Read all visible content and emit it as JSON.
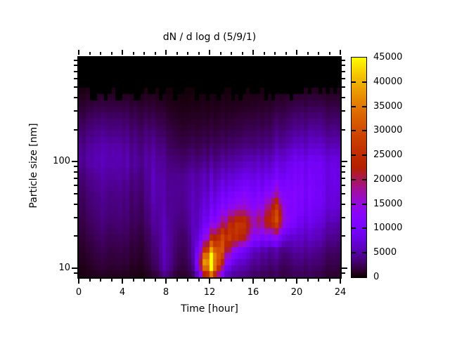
{
  "chart_data": {
    "type": "heatmap",
    "title": "dN / d log d (5/9/1)",
    "xlabel": "Time [hour]",
    "ylabel": "Particle size [nm]",
    "x_range": [
      0,
      24
    ],
    "x_major_ticks": [
      0,
      4,
      8,
      12,
      16,
      20,
      24
    ],
    "x_minor_ticks": [
      1,
      2,
      3,
      5,
      6,
      7,
      9,
      10,
      11,
      13,
      14,
      15,
      17,
      18,
      19,
      21,
      22,
      23
    ],
    "y_scale": "log",
    "y_range_nm": [
      8.2,
      950
    ],
    "y_major_ticks": [
      10,
      100
    ],
    "y_minor_ticks": [
      9,
      20,
      30,
      40,
      50,
      60,
      70,
      80,
      90,
      200,
      300,
      400,
      500,
      600,
      700,
      800,
      900
    ],
    "colorbar": {
      "min": 0,
      "max": 45000,
      "label_values": [
        0,
        5000,
        10000,
        15000,
        20000,
        25000,
        30000,
        35000,
        40000,
        45000
      ],
      "tick_values": [
        5000,
        10000,
        15000,
        20000,
        25000,
        30000,
        35000,
        40000
      ],
      "palette": "gnuplot rgbformulae 7,5,15 (black-violet-magenta-red-orange-yellow)",
      "color_black": "#000000",
      "color_violet": "#7b1fe8",
      "color_orange": "#d06000",
      "color_yellow": "#ffff00"
    },
    "no_data_cutoff_nm": [
      380,
      500
    ],
    "striping": {
      "column_minutes": 20,
      "amplitude": 0.13
    },
    "grid": {
      "rows_order": "sizes ascending, one row per size, one value per hour",
      "hours": [
        0,
        1,
        2,
        3,
        4,
        5,
        6,
        7,
        8,
        9,
        10,
        10.5,
        11,
        11.5,
        12,
        12.5,
        13,
        13.5,
        14,
        14.5,
        15,
        16,
        17,
        17.5,
        18,
        18.5,
        19,
        20,
        21,
        22,
        23,
        24
      ],
      "sizes_nm": [
        8.5,
        10,
        12,
        15,
        20,
        27,
        37,
        52,
        72,
        100,
        140,
        200,
        300,
        450
      ],
      "values": [
        [
          400,
          600,
          900,
          700,
          900,
          600,
          500,
          1500,
          4000,
          1200,
          1500,
          2500,
          8000,
          20000,
          30000,
          26000,
          12000,
          7000,
          5000,
          4500,
          4000,
          3000,
          2500,
          2500,
          2500,
          2200,
          2000,
          2500,
          2500,
          2000,
          1500,
          1200
        ],
        [
          600,
          900,
          1400,
          1100,
          1400,
          900,
          800,
          2500,
          5500,
          1800,
          2200,
          4000,
          14000,
          32000,
          42000,
          38000,
          20000,
          10000,
          7000,
          6000,
          5000,
          4000,
          3500,
          3200,
          3000,
          2800,
          2500,
          3000,
          3000,
          2500,
          2000,
          1500
        ],
        [
          800,
          1200,
          1800,
          1400,
          1800,
          1200,
          1100,
          3000,
          6000,
          2200,
          2800,
          5000,
          16000,
          36000,
          45000,
          42000,
          28000,
          16000,
          11000,
          8000,
          7000,
          5000,
          4500,
          4200,
          4000,
          3600,
          3200,
          3800,
          3800,
          3200,
          2500,
          2000
        ],
        [
          1000,
          1500,
          2200,
          1700,
          2200,
          1500,
          1400,
          3500,
          6000,
          2500,
          3200,
          5500,
          12000,
          24000,
          34000,
          36000,
          30000,
          24000,
          18000,
          13000,
          10000,
          7000,
          6000,
          5500,
          5200,
          4800,
          4200,
          4800,
          4800,
          4000,
          3200,
          2500
        ],
        [
          1400,
          2000,
          2800,
          2200,
          2800,
          2000,
          1900,
          4200,
          6000,
          3000,
          3800,
          5800,
          8000,
          12000,
          18000,
          24000,
          27000,
          28000,
          28000,
          26000,
          24000,
          14000,
          13000,
          14000,
          14000,
          12000,
          8000,
          6500,
          6500,
          5500,
          4500,
          3500
        ],
        [
          1800,
          2500,
          3400,
          2800,
          3400,
          2600,
          2500,
          5000,
          5500,
          3500,
          4500,
          6000,
          7000,
          8500,
          11000,
          13000,
          16000,
          20000,
          24000,
          26000,
          26000,
          18000,
          22000,
          27000,
          30000,
          26000,
          14000,
          9000,
          8500,
          7000,
          6000,
          4500
        ],
        [
          2200,
          3000,
          3800,
          3200,
          3800,
          3000,
          3000,
          5500,
          5000,
          4000,
          5200,
          6000,
          6500,
          7500,
          8500,
          9500,
          11000,
          12500,
          14000,
          15000,
          16000,
          13000,
          16000,
          22000,
          26000,
          22000,
          13000,
          10500,
          10000,
          8500,
          7500,
          6000
        ],
        [
          2600,
          3400,
          4200,
          3600,
          4200,
          3400,
          3400,
          6000,
          4800,
          4200,
          5500,
          5800,
          6000,
          6500,
          7000,
          7500,
          8500,
          9000,
          9500,
          10000,
          11000,
          10500,
          11500,
          13000,
          15000,
          14000,
          12000,
          11000,
          10500,
          9000,
          8000,
          6500
        ],
        [
          3200,
          4000,
          4800,
          4200,
          4800,
          4000,
          4000,
          6000,
          4500,
          4200,
          5200,
          5400,
          5500,
          5800,
          6000,
          6200,
          6500,
          7000,
          7200,
          7500,
          8000,
          8200,
          8800,
          9200,
          9800,
          10000,
          10200,
          10000,
          9800,
          8800,
          8200,
          7000
        ],
        [
          4200,
          5000,
          5500,
          5000,
          5500,
          4800,
          4500,
          5500,
          4000,
          3200,
          3800,
          3800,
          3800,
          4000,
          4200,
          4300,
          4500,
          4800,
          5000,
          5200,
          5500,
          6000,
          6500,
          6800,
          7200,
          7800,
          8200,
          8800,
          9000,
          8500,
          8000,
          6800
        ],
        [
          3800,
          4500,
          5000,
          4500,
          5000,
          4200,
          4000,
          4500,
          3200,
          2200,
          2500,
          2500,
          2500,
          2600,
          2700,
          2800,
          2900,
          3000,
          3200,
          3300,
          3500,
          3800,
          4200,
          4400,
          4800,
          5200,
          5600,
          6200,
          6500,
          6200,
          5800,
          5000
        ],
        [
          2800,
          3400,
          3800,
          3400,
          3800,
          3200,
          3000,
          3200,
          2200,
          1400,
          1500,
          1500,
          1500,
          1550,
          1600,
          1650,
          1700,
          1800,
          1900,
          2000,
          2100,
          2400,
          2700,
          2900,
          3200,
          3500,
          3800,
          4200,
          4500,
          4300,
          4000,
          3400
        ],
        [
          1600,
          2000,
          2300,
          2000,
          2300,
          1900,
          1800,
          1800,
          1200,
          700,
          800,
          800,
          800,
          820,
          850,
          870,
          900,
          950,
          1000,
          1050,
          1100,
          1300,
          1500,
          1600,
          1800,
          2000,
          2200,
          2500,
          2700,
          2600,
          2400,
          2000
        ],
        [
          500,
          700,
          800,
          700,
          800,
          650,
          600,
          600,
          400,
          250,
          280,
          280,
          280,
          290,
          300,
          310,
          320,
          340,
          360,
          380,
          400,
          480,
          550,
          600,
          680,
          750,
          820,
          950,
          1000,
          950,
          900,
          750
        ]
      ]
    }
  }
}
